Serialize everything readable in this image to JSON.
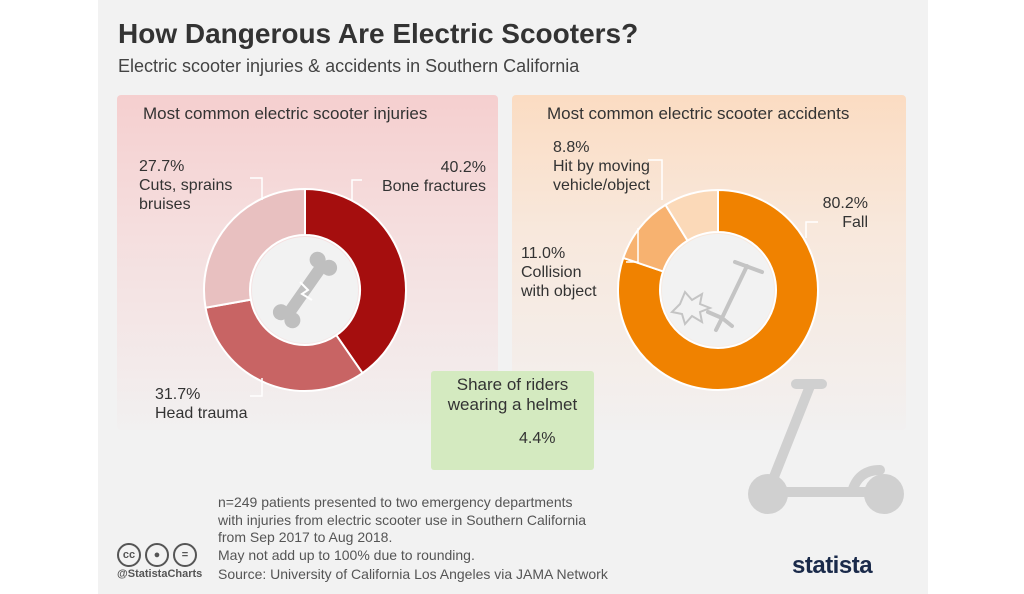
{
  "title": "How Dangerous Are Electric Scooters?",
  "subtitle": "Electric scooter injuries & accidents in Southern California",
  "injuries_panel": {
    "title": "Most common electric scooter injuries"
  },
  "accidents_panel": {
    "title": "Most common electric scooter accidents"
  },
  "helmet": {
    "title_line1": "Share of riders",
    "title_line2": "wearing a helmet",
    "value_label": "4.4%"
  },
  "footnote": {
    "line1": "n=249 patients presented to two emergency departments",
    "line2": "with injuries from electric scooter use in Southern California",
    "line3": "from Sep 2017 to Aug 2018.",
    "line4": "May not add up to 100% due to rounding."
  },
  "source": "Source: University of California Los Angeles via JAMA Network",
  "credit": "@StatistaCharts",
  "brand": "statista",
  "colors": {
    "bone_fractures": "#a50e0e",
    "head_trauma": "#c86464",
    "cuts": "#e8c0c0",
    "fall": "#f08200",
    "collision": "#f7b270",
    "hit_by_vehicle": "#fbd9b8",
    "helmet": "#8dc63f"
  },
  "chart_data": [
    {
      "type": "pie",
      "title": "Most common electric scooter injuries",
      "series": [
        {
          "name": "Bone fractures",
          "value": 40.2,
          "label": "40.2%"
        },
        {
          "name": "Head trauma",
          "value": 31.7,
          "label": "31.7%"
        },
        {
          "name": "Cuts, sprains bruises",
          "label_line1": "Cuts, sprains",
          "label_line2": "bruises",
          "value": 27.7,
          "label": "27.7%"
        }
      ]
    },
    {
      "type": "pie",
      "title": "Most common electric scooter accidents",
      "series": [
        {
          "name": "Fall",
          "value": 80.2,
          "label": "80.2%"
        },
        {
          "name": "Collision with object",
          "label_line1": "Collision",
          "label_line2": "with object",
          "value": 11.0,
          "label": "11.0%"
        },
        {
          "name": "Hit by moving vehicle/object",
          "label_line1": "Hit by moving",
          "label_line2": "vehicle/object",
          "value": 8.8,
          "label": "8.8%"
        }
      ]
    }
  ]
}
